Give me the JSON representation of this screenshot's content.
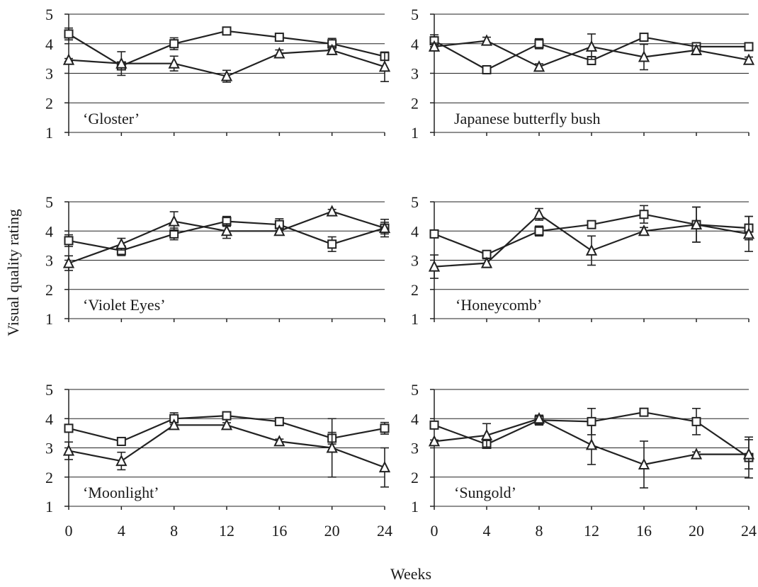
{
  "chart_data": [
    {
      "type": "line",
      "title": "‘Gloster’",
      "x": [
        0,
        4,
        8,
        12,
        16,
        20,
        24
      ],
      "ylim": [
        1,
        5
      ],
      "grid": true,
      "series": [
        {
          "marker": "square",
          "values": [
            4.33,
            3.25,
            4.0,
            4.43,
            4.22,
            4.0,
            3.57
          ],
          "errors": [
            0.2,
            0.1,
            0.2,
            0.07,
            0.08,
            0.18,
            0.1
          ]
        },
        {
          "marker": "triangle",
          "values": [
            3.45,
            3.33,
            3.33,
            2.9,
            3.67,
            3.78,
            3.22
          ],
          "errors": [
            0.05,
            0.4,
            0.25,
            0.2,
            0.12,
            0.14,
            0.5
          ]
        }
      ]
    },
    {
      "type": "line",
      "title": "Japanese butterfly bush",
      "x": [
        0,
        4,
        8,
        12,
        16,
        20,
        24
      ],
      "ylim": [
        1,
        5
      ],
      "grid": true,
      "series": [
        {
          "marker": "square",
          "values": [
            4.1,
            3.12,
            4.0,
            3.43,
            4.22,
            3.9,
            3.9
          ],
          "errors": [
            0.2,
            0.12,
            0.17,
            0.1,
            0.08,
            0.08,
            0.05
          ]
        },
        {
          "marker": "triangle",
          "values": [
            3.9,
            4.1,
            3.22,
            3.9,
            3.55,
            3.78,
            3.45
          ],
          "errors": [
            0.12,
            0.12,
            0.1,
            0.43,
            0.43,
            0.15,
            0.1
          ]
        }
      ]
    },
    {
      "type": "line",
      "title": "‘Violet Eyes’",
      "x": [
        0,
        4,
        8,
        12,
        16,
        20,
        24
      ],
      "ylim": [
        1,
        5
      ],
      "grid": true,
      "series": [
        {
          "marker": "square",
          "values": [
            3.67,
            3.33,
            3.9,
            4.33,
            4.22,
            3.55,
            4.1
          ],
          "errors": [
            0.2,
            0.17,
            0.2,
            0.17,
            0.2,
            0.25,
            0.2
          ]
        },
        {
          "marker": "triangle",
          "values": [
            2.9,
            3.55,
            4.33,
            4.0,
            4.0,
            4.67,
            4.1
          ],
          "errors": [
            0.25,
            0.2,
            0.33,
            0.25,
            0.1,
            0.07,
            0.3
          ]
        }
      ]
    },
    {
      "type": "line",
      "title": "‘Honeycomb’",
      "x": [
        0,
        4,
        8,
        12,
        16,
        20,
        24
      ],
      "ylim": [
        1,
        5
      ],
      "grid": true,
      "series": [
        {
          "marker": "square",
          "values": [
            3.9,
            3.2,
            4.0,
            4.22,
            4.57,
            4.22,
            4.1
          ],
          "errors": [
            0.07,
            0.05,
            0.17,
            0.08,
            0.3,
            0.6,
            0.4
          ]
        },
        {
          "marker": "triangle",
          "values": [
            2.78,
            2.9,
            4.57,
            3.33,
            4.0,
            4.22,
            3.9
          ],
          "errors": [
            0.4,
            0.15,
            0.2,
            0.5,
            0.12,
            0.6,
            0.6
          ]
        }
      ]
    },
    {
      "type": "line",
      "title": "‘Moonlight’",
      "x": [
        0,
        4,
        8,
        12,
        16,
        20,
        24
      ],
      "ylim": [
        1,
        5
      ],
      "grid": true,
      "series": [
        {
          "marker": "square",
          "values": [
            3.67,
            3.22,
            4.0,
            4.1,
            3.9,
            3.33,
            3.67
          ],
          "errors": [
            0.07,
            0.05,
            0.2,
            0.1,
            0.08,
            0.2,
            0.2
          ]
        },
        {
          "marker": "triangle",
          "values": [
            2.9,
            2.55,
            3.78,
            3.78,
            3.22,
            3.0,
            2.33
          ],
          "errors": [
            0.3,
            0.3,
            0.08,
            0.08,
            0.08,
            1.0,
            0.67
          ]
        }
      ]
    },
    {
      "type": "line",
      "title": "‘Sungold’",
      "x": [
        0,
        4,
        8,
        12,
        16,
        20,
        24
      ],
      "ylim": [
        1,
        5
      ],
      "grid": true,
      "series": [
        {
          "marker": "square",
          "values": [
            3.78,
            3.12,
            3.95,
            3.9,
            4.22,
            3.9,
            2.67
          ],
          "errors": [
            0.05,
            0.05,
            0.17,
            0.45,
            0.08,
            0.45,
            0.7
          ]
        },
        {
          "marker": "triangle",
          "values": [
            3.22,
            3.43,
            4.0,
            3.1,
            2.43,
            2.78,
            2.78
          ],
          "errors": [
            0.05,
            0.4,
            0.1,
            0.67,
            0.8,
            0.08,
            0.5
          ]
        }
      ]
    }
  ],
  "shared_axes": {
    "xlabel": "Weeks",
    "ylabel": "Visual quality rating",
    "x_ticks": [
      "0",
      "4",
      "8",
      "12",
      "16",
      "20",
      "24"
    ],
    "y_ticks": [
      "1",
      "2",
      "3",
      "4",
      "5"
    ]
  }
}
